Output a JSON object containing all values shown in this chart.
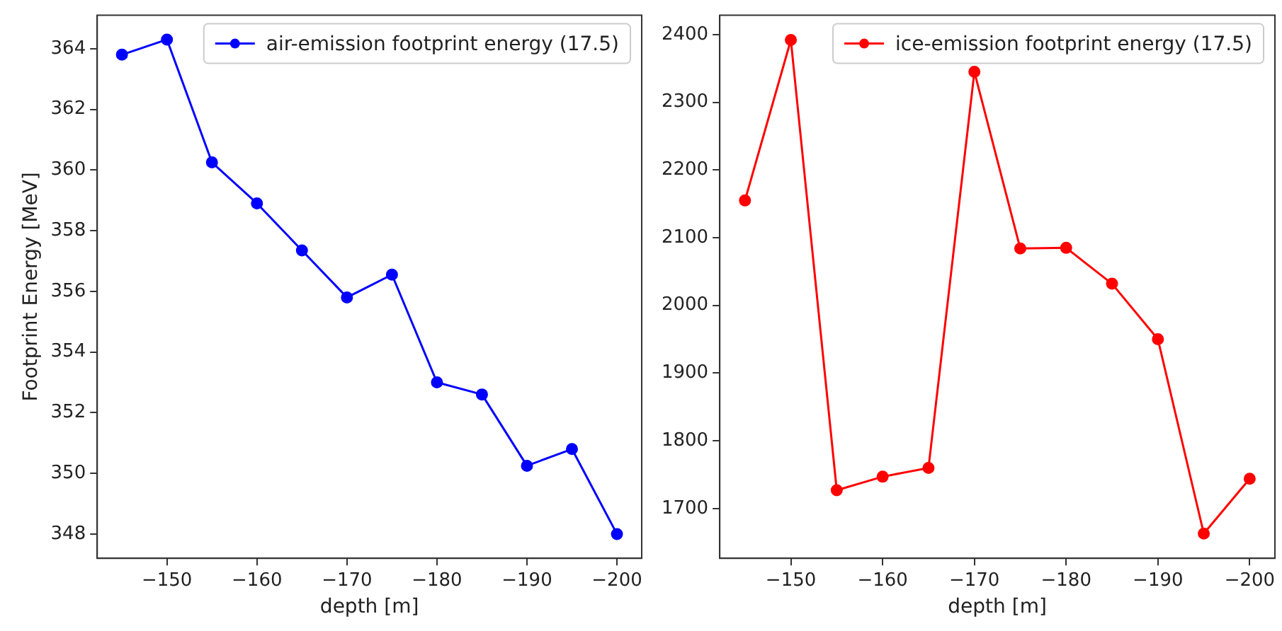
{
  "chart_data": [
    {
      "type": "line",
      "xlabel": "depth [m]",
      "ylabel": "Footprint Energy [MeV]",
      "x": [
        -145,
        -150,
        -155,
        -160,
        -165,
        -170,
        -175,
        -180,
        -185,
        -190,
        -195,
        -200
      ],
      "series": [
        {
          "name": "air-emission footprint energy (17.5)",
          "color": "#0000ff",
          "values": [
            363.8,
            364.3,
            360.25,
            358.9,
            357.35,
            355.8,
            356.55,
            353.0,
            352.6,
            350.25,
            350.8,
            348.0
          ]
        }
      ],
      "xlim": [
        -142.25,
        -202.75
      ],
      "xticks": [
        -150,
        -160,
        -170,
        -180,
        -190,
        -200
      ],
      "ylim": [
        347.2,
        365.1
      ],
      "yticks": [
        348,
        350,
        352,
        354,
        356,
        358,
        360,
        362,
        364
      ],
      "legend": "top right",
      "marker": "circle",
      "line_style": "solid",
      "grid": false
    },
    {
      "type": "line",
      "xlabel": "depth [m]",
      "x": [
        -145,
        -150,
        -155,
        -160,
        -165,
        -170,
        -175,
        -180,
        -185,
        -190,
        -195,
        -200
      ],
      "series": [
        {
          "name": "ice-emission footprint energy (17.5)",
          "color": "#ff0000",
          "values": [
            2155,
            2392,
            1727,
            1747,
            1760,
            2345,
            2084,
            2085,
            2032,
            1950,
            1663,
            1744
          ]
        }
      ],
      "xlim": [
        -142.25,
        -202.75
      ],
      "xticks": [
        -150,
        -160,
        -170,
        -180,
        -190,
        -200
      ],
      "ylim": [
        1626.5,
        2428.5
      ],
      "yticks": [
        1700,
        1800,
        1900,
        2000,
        2100,
        2200,
        2300,
        2400
      ],
      "legend": "top right",
      "marker": "circle",
      "line_style": "solid",
      "grid": false
    }
  ]
}
